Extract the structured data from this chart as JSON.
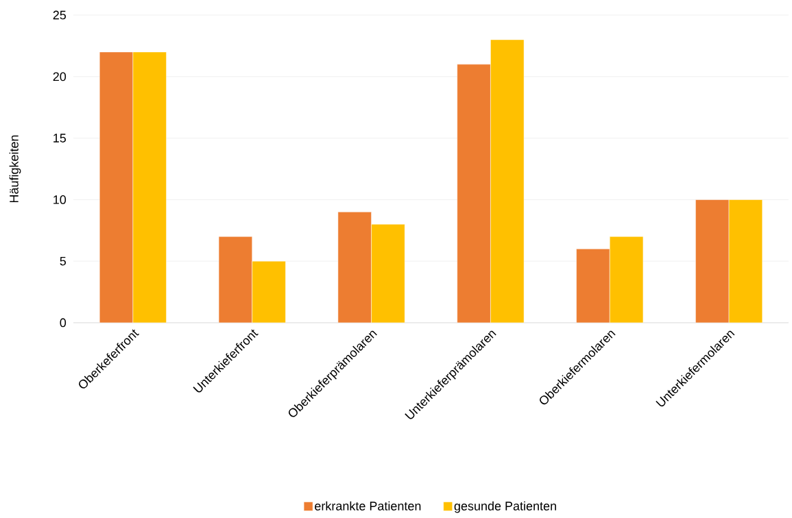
{
  "chart_data": {
    "type": "bar",
    "ylabel": "Häufigkeiten",
    "categories": [
      "Oberkeferfront",
      "Unterkieferfront",
      "Oberkieferprämolaren",
      "Unterkieferprämolaren",
      "Oberkiefermolaren",
      "Unterkiefermolaren"
    ],
    "series": [
      {
        "name": "erkrankte Patienten",
        "color": "#ed7d31",
        "values": [
          22,
          7,
          9,
          21,
          6,
          10
        ]
      },
      {
        "name": "gesunde Patienten",
        "color": "#ffc000",
        "values": [
          22,
          5,
          8,
          23,
          7,
          10
        ]
      }
    ],
    "ylim": [
      0,
      25
    ],
    "yticks": [
      0,
      5,
      10,
      15,
      20,
      25
    ],
    "grid": "y",
    "legend": "bottom"
  }
}
